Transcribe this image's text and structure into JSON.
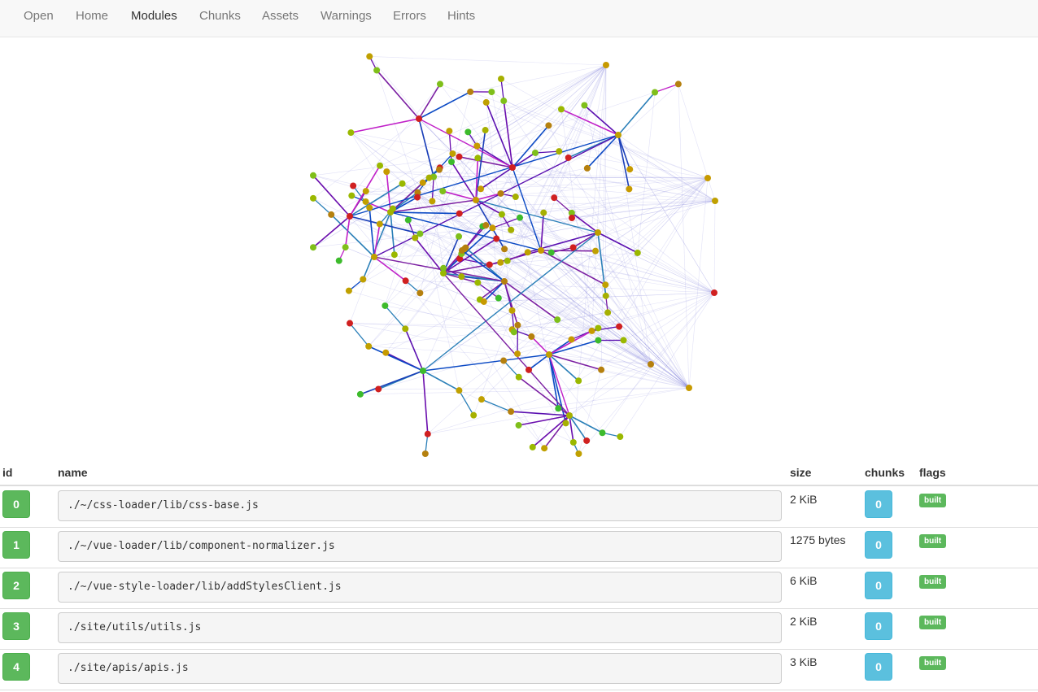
{
  "nav": {
    "items": [
      {
        "label": "Open",
        "active": false
      },
      {
        "label": "Home",
        "active": false
      },
      {
        "label": "Modules",
        "active": true
      },
      {
        "label": "Chunks",
        "active": false
      },
      {
        "label": "Assets",
        "active": false
      },
      {
        "label": "Warnings",
        "active": false
      },
      {
        "label": "Errors",
        "active": false
      },
      {
        "label": "Hints",
        "active": false
      }
    ]
  },
  "graph": {
    "edge_colors": [
      "#6a0dad",
      "#7b1fa2",
      "#5a0fb0",
      "#1a3fb8",
      "#0a49c4",
      "#c020c8",
      "#2a7fb8"
    ],
    "faint_edge_color": "#8a8ae0",
    "node_colors": [
      "#9ab800",
      "#a6b000",
      "#7fbf1a",
      "#c79a00",
      "#b5800e",
      "#c0a000",
      "#3dbb2c",
      "#d02020"
    ]
  },
  "table": {
    "headers": {
      "id": "id",
      "name": "name",
      "size": "size",
      "chunks": "chunks",
      "flags": "flags"
    },
    "rows": [
      {
        "id": "0",
        "name": "./~/css-loader/lib/css-base.js",
        "size": "2 KiB",
        "chunks": "0",
        "flag": "built"
      },
      {
        "id": "1",
        "name": "./~/vue-loader/lib/component-normalizer.js",
        "size": "1275 bytes",
        "chunks": "0",
        "flag": "built"
      },
      {
        "id": "2",
        "name": "./~/vue-style-loader/lib/addStylesClient.js",
        "size": "6 KiB",
        "chunks": "0",
        "flag": "built"
      },
      {
        "id": "3",
        "name": "./site/utils/utils.js",
        "size": "2 KiB",
        "chunks": "0",
        "flag": "built"
      },
      {
        "id": "4",
        "name": "./site/apis/apis.js",
        "size": "3 KiB",
        "chunks": "0",
        "flag": "built"
      }
    ]
  }
}
